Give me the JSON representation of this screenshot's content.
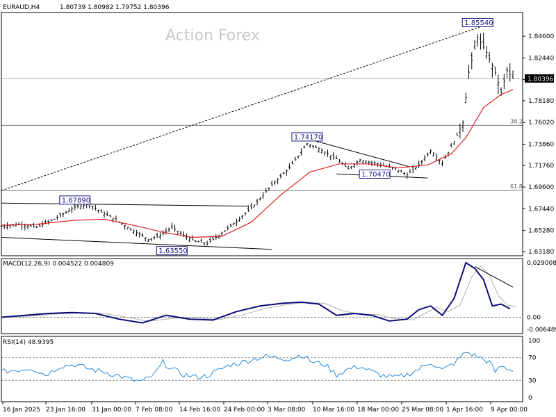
{
  "header": {
    "symbol": "EURAUD,H4",
    "ohlc": "1.80739 1.80982 1.79752 1.80396"
  },
  "watermark": "Action Forex",
  "current_price": "1.80396",
  "fib_levels": [
    {
      "label": "38.2",
      "price": 1.7573
    },
    {
      "label": "61.8",
      "price": 1.6925
    }
  ],
  "price_annotations": [
    {
      "label": "1.85540",
      "price": 1.8554,
      "bar": 162
    },
    {
      "label": "1.74170",
      "price": 1.7417,
      "bar": 104
    },
    {
      "label": "1.70470",
      "price": 1.7047,
      "bar": 127
    },
    {
      "label": "1.67890",
      "price": 1.6789,
      "bar": 25
    },
    {
      "label": "1.63550",
      "price": 1.6355,
      "bar": 58
    }
  ],
  "indicators": {
    "macd_title": "MACD(12,26,9) 0.004522 0.004809",
    "rsi_title": "RSI(14) 48.9395",
    "macd_axis": [
      "0.029008",
      "0.00",
      "-0.006489"
    ],
    "rsi_axis": [
      "100",
      "70",
      "30",
      "0"
    ]
  },
  "colors": {
    "ma": "#e02020",
    "macd_line": "#0a0a78",
    "signal_line": "#b0b0b0",
    "rsi_line": "#2a8ad8",
    "annotation": "#1a1a8c"
  },
  "chart_data": {
    "type": "candlestick",
    "timeframe": "H4",
    "price_ylim": [
      1.6318,
      1.8654
    ],
    "price_ticks": [
      "1.84600",
      "1.82440",
      "1.80280",
      "1.78180",
      "1.76020",
      "1.73860",
      "1.71760",
      "1.69600",
      "1.67440",
      "1.65280",
      "1.63180"
    ],
    "x_tick_labels": [
      "16 Jan 2025",
      "23 Jan 16:00",
      "31 Jan 00:00",
      "7 Feb 08:00",
      "14 Feb 16:00",
      "24 Feb 00:00",
      "3 Mar 08:00",
      "10 Mar 16:00",
      "18 Mar 00:00",
      "25 Mar 08:00",
      "1 Apr 16:00",
      "9 Apr 00:00"
    ],
    "price_path": [
      [
        0,
        1.657
      ],
      [
        6,
        1.659
      ],
      [
        12,
        1.656
      ],
      [
        18,
        1.664
      ],
      [
        25,
        1.676
      ],
      [
        30,
        1.679
      ],
      [
        34,
        1.671
      ],
      [
        38,
        1.665
      ],
      [
        44,
        1.654
      ],
      [
        50,
        1.644
      ],
      [
        54,
        1.648
      ],
      [
        58,
        1.656
      ],
      [
        62,
        1.648
      ],
      [
        66,
        1.642
      ],
      [
        70,
        1.64
      ],
      [
        74,
        1.648
      ],
      [
        80,
        1.662
      ],
      [
        86,
        1.678
      ],
      [
        92,
        1.698
      ],
      [
        98,
        1.715
      ],
      [
        104,
        1.739
      ],
      [
        108,
        1.734
      ],
      [
        114,
        1.724
      ],
      [
        118,
        1.714
      ],
      [
        122,
        1.723
      ],
      [
        128,
        1.719
      ],
      [
        134,
        1.714
      ],
      [
        138,
        1.708
      ],
      [
        142,
        1.718
      ],
      [
        146,
        1.732
      ],
      [
        150,
        1.72
      ],
      [
        154,
        1.741
      ],
      [
        157,
        1.76
      ],
      [
        159,
        1.81
      ],
      [
        162,
        1.845
      ],
      [
        165,
        1.83
      ],
      [
        168,
        1.81
      ],
      [
        170,
        1.79
      ],
      [
        172,
        1.812
      ],
      [
        174,
        1.804
      ]
    ],
    "ma_path": [
      [
        0,
        1.658
      ],
      [
        12,
        1.659
      ],
      [
        25,
        1.663
      ],
      [
        35,
        1.664
      ],
      [
        45,
        1.658
      ],
      [
        55,
        1.651
      ],
      [
        65,
        1.646
      ],
      [
        75,
        1.647
      ],
      [
        85,
        1.661
      ],
      [
        95,
        1.688
      ],
      [
        105,
        1.711
      ],
      [
        115,
        1.719
      ],
      [
        125,
        1.719
      ],
      [
        135,
        1.715
      ],
      [
        145,
        1.718
      ],
      [
        153,
        1.729
      ],
      [
        158,
        1.745
      ],
      [
        164,
        1.775
      ],
      [
        170,
        1.788
      ],
      [
        174,
        1.793
      ]
    ],
    "trendlines": [
      {
        "from": [
          0,
          1.6925
        ],
        "to": [
          163,
          1.8554
        ],
        "style": "dotted"
      },
      {
        "from": [
          0,
          1.68
        ],
        "to": [
          84,
          1.677
        ],
        "style": "solid"
      },
      {
        "from": [
          0,
          1.646
        ],
        "to": [
          92,
          1.634
        ],
        "style": "solid"
      },
      {
        "from": [
          104,
          1.744
        ],
        "to": [
          139,
          1.716
        ],
        "style": "solid"
      },
      {
        "from": [
          114,
          1.709
        ],
        "to": [
          145,
          1.705
        ],
        "style": "solid"
      }
    ],
    "macd": {
      "ylim": [
        -0.006489,
        0.029008
      ],
      "path": [
        [
          0,
          0.0
        ],
        [
          8,
          0.001
        ],
        [
          16,
          0.002
        ],
        [
          24,
          0.0025
        ],
        [
          32,
          0.002
        ],
        [
          40,
          -0.001
        ],
        [
          48,
          -0.003
        ],
        [
          56,
          0.001
        ],
        [
          64,
          -0.001
        ],
        [
          72,
          -0.0015
        ],
        [
          80,
          0.003
        ],
        [
          88,
          0.006
        ],
        [
          96,
          0.0075
        ],
        [
          102,
          0.008
        ],
        [
          108,
          0.007
        ],
        [
          114,
          0.001
        ],
        [
          120,
          0.002
        ],
        [
          126,
          0.001
        ],
        [
          132,
          -0.002
        ],
        [
          138,
          -0.001
        ],
        [
          142,
          0.004
        ],
        [
          146,
          0.006
        ],
        [
          150,
          0.001
        ],
        [
          154,
          0.01
        ],
        [
          158,
          0.029
        ],
        [
          161,
          0.026
        ],
        [
          164,
          0.02
        ],
        [
          167,
          0.006
        ],
        [
          170,
          0.007
        ],
        [
          173,
          0.0045
        ]
      ]
    },
    "rsi": {
      "ylim": [
        0,
        100
      ],
      "levels": [
        70,
        30
      ],
      "path": [
        [
          0,
          45
        ],
        [
          5,
          48
        ],
        [
          10,
          52
        ],
        [
          15,
          40
        ],
        [
          20,
          55
        ],
        [
          25,
          58
        ],
        [
          30,
          50
        ],
        [
          35,
          45
        ],
        [
          40,
          38
        ],
        [
          45,
          30
        ],
        [
          48,
          28
        ],
        [
          52,
          40
        ],
        [
          55,
          62
        ],
        [
          58,
          50
        ],
        [
          62,
          40
        ],
        [
          66,
          36
        ],
        [
          70,
          38
        ],
        [
          74,
          48
        ],
        [
          78,
          58
        ],
        [
          82,
          62
        ],
        [
          86,
          68
        ],
        [
          90,
          72
        ],
        [
          94,
          70
        ],
        [
          98,
          68
        ],
        [
          102,
          75
        ],
        [
          106,
          62
        ],
        [
          110,
          58
        ],
        [
          114,
          40
        ],
        [
          118,
          50
        ],
        [
          122,
          55
        ],
        [
          126,
          45
        ],
        [
          130,
          38
        ],
        [
          134,
          35
        ],
        [
          138,
          40
        ],
        [
          142,
          50
        ],
        [
          146,
          62
        ],
        [
          150,
          48
        ],
        [
          154,
          60
        ],
        [
          158,
          80
        ],
        [
          162,
          72
        ],
        [
          166,
          62
        ],
        [
          168,
          45
        ],
        [
          170,
          55
        ],
        [
          173,
          49
        ]
      ]
    }
  }
}
